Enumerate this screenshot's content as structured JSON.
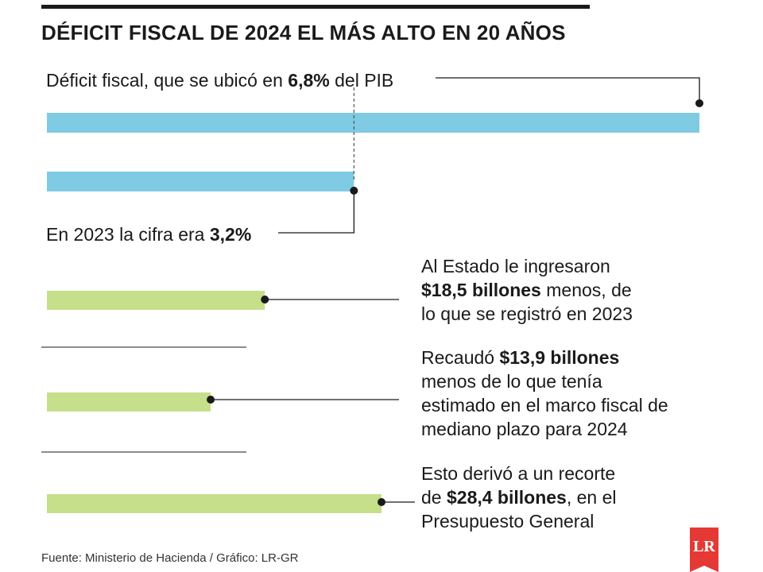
{
  "title": "DÉFICIT FISCAL DE 2024 EL MÁS ALTO EN 20 AÑOS",
  "colors": {
    "blue": "#7ecbe3",
    "green": "#c5df8b",
    "line": "#1a1a1a"
  },
  "chart_data": {
    "type": "bar",
    "orientation": "horizontal",
    "groups": [
      {
        "name": "deficit",
        "unit": "% del PIB",
        "values": [
          6.8,
          3.2
        ],
        "notes": [
          {
            "pre": "Déficit fiscal, que se ubicó en ",
            "bold": "6,8%",
            "post": " del PIB"
          },
          {
            "pre": "En 2023 la cifra era ",
            "bold": "3,2%",
            "post": ""
          }
        ]
      },
      {
        "name": "billones",
        "values": [
          18.5,
          13.9,
          28.4
        ],
        "notes": [
          {
            "line1_pre": "Al Estado le ingresaron",
            "line1_bold": "",
            "line2_bold": "$18,5 billones",
            "line2_post": " menos, de",
            "line3": "lo que se registró en 2023",
            "line4": ""
          },
          {
            "line1_pre": "Recaudó ",
            "line1_bold": "$13,9 billones",
            "line2_bold": "",
            "line2_post": "menos de lo que tenía",
            "line3": "estimado en el marco fiscal de",
            "line4": "mediano plazo para 2024"
          },
          {
            "line1_pre": "Esto derivó a un recorte",
            "line1_bold": "",
            "line2_pre": "de ",
            "line2_bold": "$28,4 billones",
            "line2_post": ", en el",
            "line3": "Presupuesto General",
            "line4": ""
          }
        ]
      }
    ]
  },
  "source": "Fuente: Ministerio de Hacienda / Gráfico: LR-GR",
  "logo": "LR"
}
